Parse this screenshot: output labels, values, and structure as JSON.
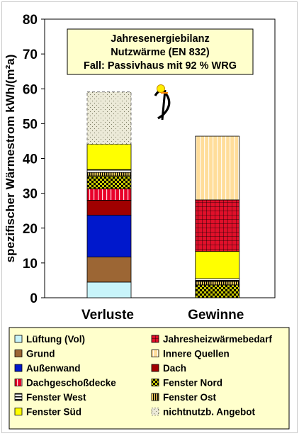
{
  "chart_data": {
    "type": "bar",
    "stacked": true,
    "title_lines": [
      "Jahresenergiebilanz",
      "Nutzwärme (EN 832)",
      "Fall: Passivhaus mit 92 % WRG"
    ],
    "xlabel": "",
    "ylabel": "spezifischer Wärmestrom kWh/(m²a)",
    "ylim": [
      0,
      80
    ],
    "yticks": [
      "0",
      "10",
      "20",
      "30",
      "40",
      "50",
      "60",
      "70",
      "80"
    ],
    "categories": [
      "Verluste",
      "Gewinne"
    ],
    "grid": false,
    "legend_position": "bottom",
    "series": [
      {
        "name": "Lüftung (Vol)",
        "color": "#c8f4fa",
        "pattern": "none",
        "values": [
          4.5,
          0
        ]
      },
      {
        "name": "Grund",
        "color": "#9c6634",
        "pattern": "none",
        "values": [
          7.2,
          0
        ]
      },
      {
        "name": "Außenwand",
        "color": "#0018cc",
        "pattern": "none",
        "values": [
          12.0,
          0
        ]
      },
      {
        "name": "Dach",
        "color": "#a00000",
        "pattern": "none",
        "values": [
          4.3,
          0
        ]
      },
      {
        "name": "Dachgeschoßdecke",
        "color": "#e8002a",
        "pattern": "vstripe-white",
        "values": [
          3.3,
          0
        ]
      },
      {
        "name": "Fenster Nord",
        "color": "#c8c800",
        "pattern": "check",
        "values": [
          3.7,
          3.7
        ]
      },
      {
        "name": "Fenster Ost",
        "color": "#ffd860",
        "pattern": "vstripe-dark",
        "values": [
          1.0,
          1.0
        ]
      },
      {
        "name": "Fenster West",
        "color": "#ffffff",
        "pattern": "hbar",
        "values": [
          0.8,
          0.8
        ]
      },
      {
        "name": "Fenster Süd",
        "color": "#ffff00",
        "pattern": "none",
        "values": [
          7.3,
          7.8
        ]
      },
      {
        "name": "Jahresheizwärmebedarf",
        "color": "#e0102a",
        "pattern": "grid",
        "values": [
          0,
          14.8
        ]
      },
      {
        "name": "Innere Quellen",
        "color": "#ffdd9a",
        "pattern": "vstripe-white",
        "values": [
          0,
          18.3
        ]
      },
      {
        "name": "nichtnutzb. Angebot",
        "color": "#ecead8",
        "pattern": "dots",
        "values": [
          15.0,
          0
        ]
      }
    ],
    "legend": {
      "columns": [
        [
          "Lüftung (Vol)",
          "Grund",
          "Außenwand",
          "Dachgeschoßdecke",
          "Fenster West",
          "Fenster Süd"
        ],
        [
          "Jahresheizwärmebedarf",
          "Innere Quellen",
          "Dach",
          "Fenster Nord",
          "Fenster Ost",
          "nichtnutzb. Angebot"
        ]
      ]
    },
    "annotations": [
      "logo: passive house symbol"
    ]
  }
}
